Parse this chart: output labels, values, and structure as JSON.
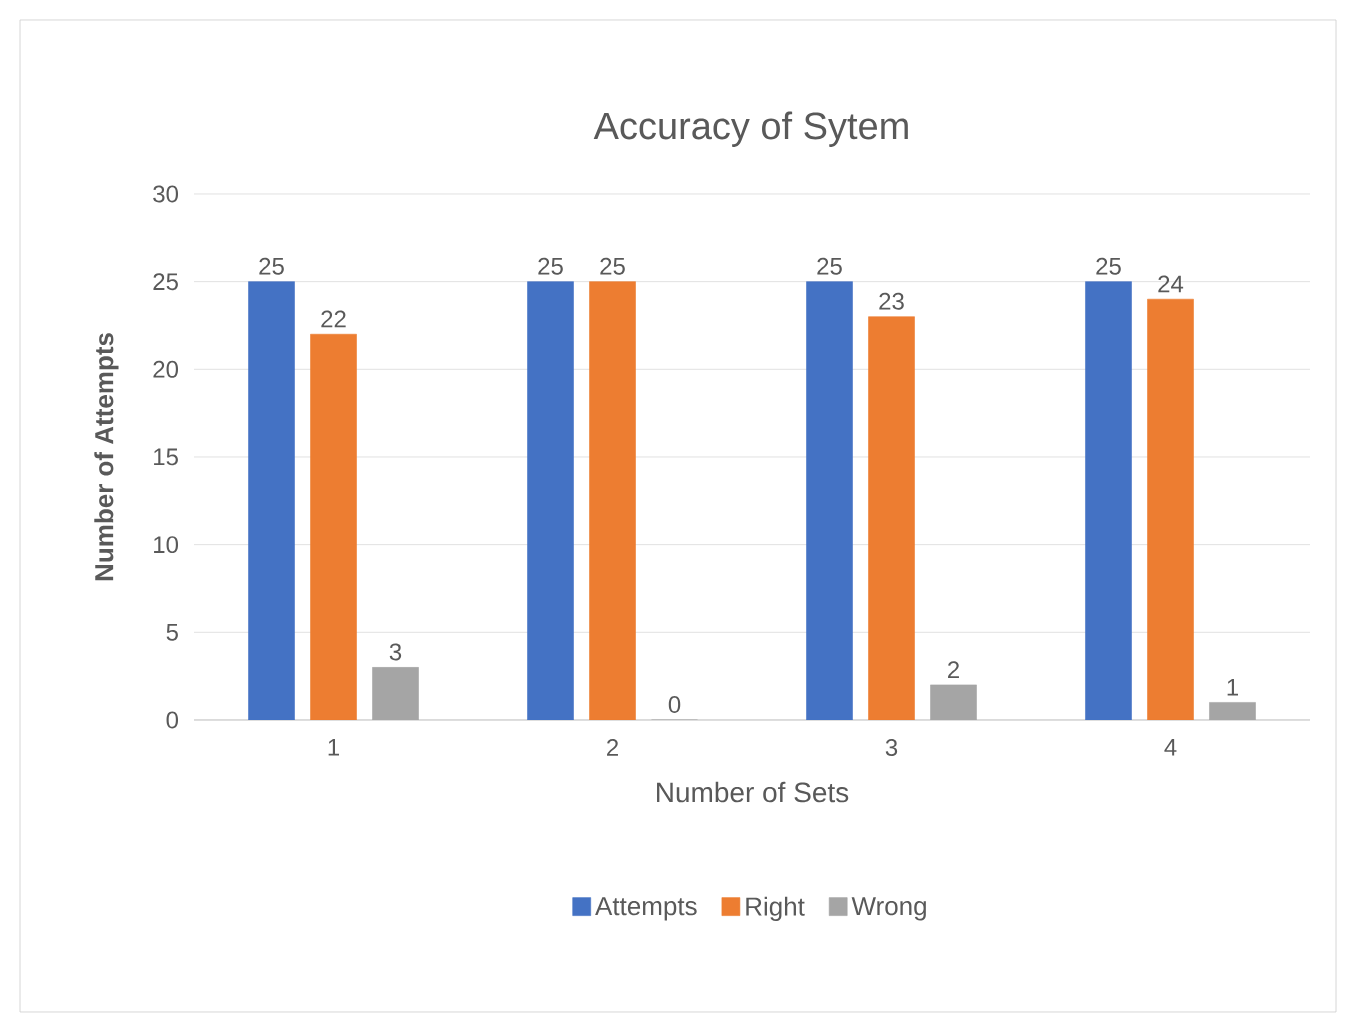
{
  "chart_data": {
    "type": "bar",
    "title": "Accuracy of Sytem",
    "xlabel": "Number of Sets",
    "ylabel": "Number of Attempts",
    "categories": [
      "1",
      "2",
      "3",
      "4"
    ],
    "series": [
      {
        "name": "Attempts",
        "color": "#4472c4",
        "values": [
          25,
          25,
          25,
          25
        ]
      },
      {
        "name": "Right",
        "color": "#ed7d31",
        "values": [
          22,
          25,
          23,
          24
        ]
      },
      {
        "name": "Wrong",
        "color": "#a5a5a5",
        "values": [
          3,
          0,
          2,
          1
        ]
      }
    ],
    "ylim": [
      0,
      30
    ],
    "yticks": [
      0,
      5,
      10,
      15,
      20,
      25,
      30
    ],
    "grid": "y",
    "legend": "bottom",
    "data_labels": true
  }
}
